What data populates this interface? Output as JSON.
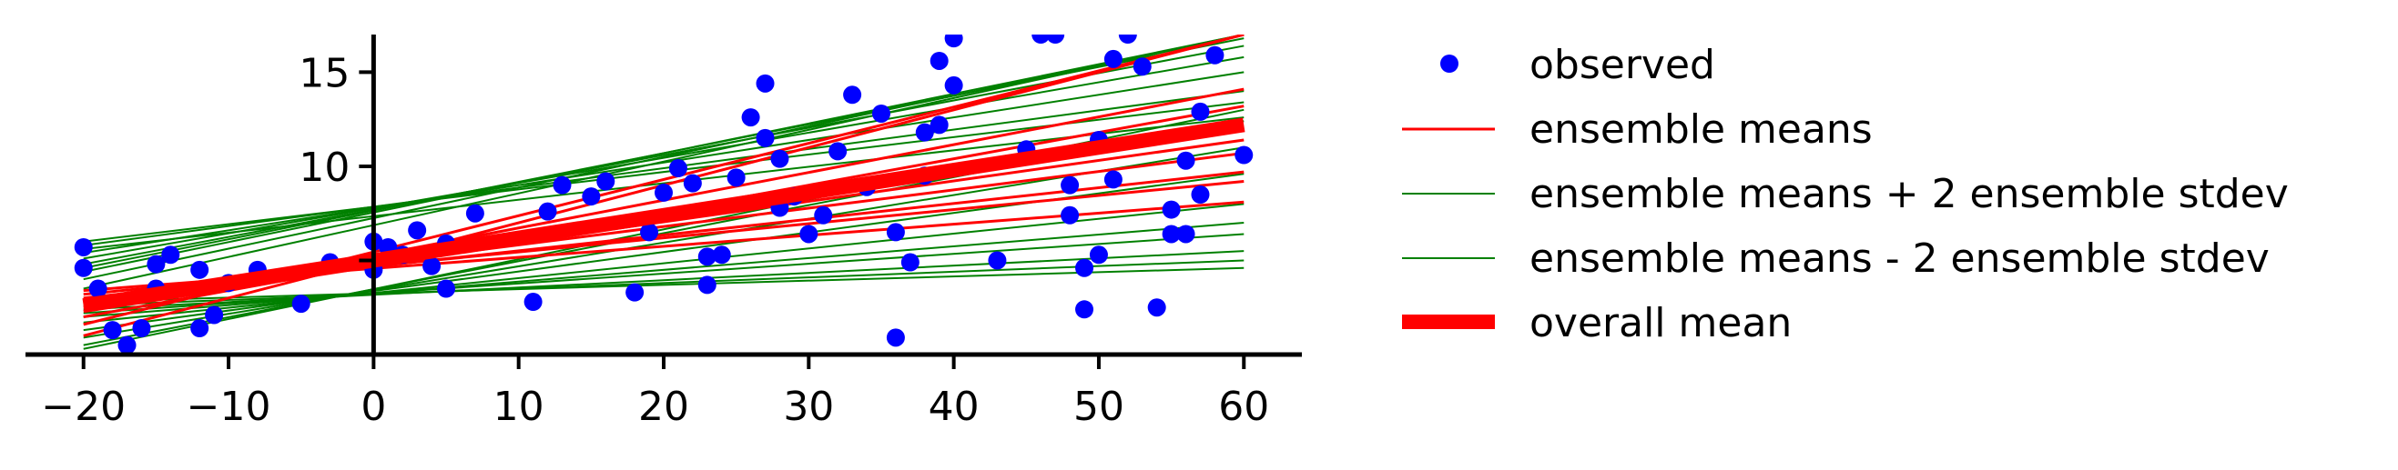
{
  "chart_data": {
    "type": "scatter",
    "title": "",
    "xlabel": "",
    "ylabel": "",
    "xlim": [
      -24,
      64
    ],
    "ylim": [
      0,
      17
    ],
    "x_ticks": [
      -20,
      -10,
      0,
      10,
      20,
      30,
      40,
      50,
      60
    ],
    "y_ticks": [
      5,
      10,
      15
    ],
    "y_tick_labels_shown": [
      10,
      15
    ],
    "grid": false,
    "legend_position": "right",
    "colors": {
      "observed": "#0000ff",
      "ensemble_means": "#ff0000",
      "ensemble_stdev": "#008000",
      "overall_mean": "#ff0000"
    },
    "legend": {
      "observed": "observed",
      "ensemble_means": "ensemble means",
      "plus_stdev": "ensemble means + 2 ensemble stdev",
      "minus_stdev": "ensemble means - 2 ensemble stdev",
      "overall_mean": "overall mean"
    },
    "observed": {
      "x": [
        -20,
        -20,
        -19,
        -18,
        -17,
        -16,
        -15,
        -15,
        -14,
        -12,
        -12,
        -11,
        -10,
        -8,
        -5,
        -3,
        0,
        0,
        1,
        2,
        3,
        4,
        5,
        5,
        7,
        11,
        12,
        13,
        15,
        16,
        18,
        19,
        20,
        21,
        22,
        23,
        23,
        24,
        25,
        26,
        27,
        27,
        28,
        28,
        29,
        30,
        31,
        32,
        33,
        34,
        35,
        36,
        36,
        37,
        38,
        38,
        39,
        39,
        40,
        40,
        43,
        45,
        46,
        47,
        48,
        48,
        49,
        49,
        50,
        50,
        51,
        51,
        52,
        53,
        54,
        55,
        55,
        56,
        56,
        57,
        57,
        58,
        60
      ],
      "y": [
        5.7,
        4.6,
        3.5,
        1.3,
        0.5,
        1.4,
        4.8,
        3.5,
        5.3,
        1.4,
        4.5,
        2.1,
        3.8,
        4.5,
        2.7,
        4.9,
        6.0,
        4.5,
        5.7,
        5.3,
        6.6,
        4.7,
        3.5,
        5.9,
        7.5,
        2.8,
        7.6,
        9.0,
        8.4,
        9.2,
        3.3,
        6.5,
        8.6,
        9.9,
        9.1,
        3.7,
        5.2,
        5.3,
        9.4,
        12.6,
        11.5,
        14.4,
        10.4,
        7.8,
        8.4,
        6.4,
        7.4,
        10.8,
        13.8,
        8.9,
        12.8,
        0.9,
        6.5,
        4.9,
        11.8,
        9.5,
        12.2,
        15.6,
        14.3,
        16.8,
        5.0,
        10.9,
        17.0,
        17.0,
        9.0,
        7.4,
        4.6,
        2.4,
        5.3,
        11.4,
        9.3,
        15.7,
        17.0,
        15.3,
        2.5,
        7.7,
        6.4,
        10.3,
        6.4,
        8.5,
        12.9,
        15.9,
        10.6
      ]
    },
    "ensemble_means": [
      {
        "y_at_xmin": 2.5,
        "y_at_xmax": 12.0
      },
      {
        "y_at_xmin": 2.3,
        "y_at_xmax": 14.1
      },
      {
        "y_at_xmin": 2.9,
        "y_at_xmax": 10.7
      },
      {
        "y_at_xmin": 1.6,
        "y_at_xmax": 17.0
      },
      {
        "y_at_xmin": 3.2,
        "y_at_xmax": 9.2
      },
      {
        "y_at_xmin": 1.0,
        "y_at_xmax": 17.0
      },
      {
        "y_at_xmin": 3.4,
        "y_at_xmax": 8.1
      },
      {
        "y_at_xmin": 2.0,
        "y_at_xmax": 13.2
      },
      {
        "y_at_xmin": 2.7,
        "y_at_xmax": 11.4
      },
      {
        "y_at_xmin": 3.0,
        "y_at_xmax": 9.7
      }
    ],
    "ensemble_plus_stdev": [
      {
        "y_at_xmin": 4.4,
        "y_at_xmax": 17.0
      },
      {
        "y_at_xmin": 4.0,
        "y_at_xmax": 17.0
      },
      {
        "y_at_xmin": 4.8,
        "y_at_xmax": 16.4
      },
      {
        "y_at_xmin": 5.1,
        "y_at_xmax": 15.8
      },
      {
        "y_at_xmin": 5.4,
        "y_at_xmax": 15.0
      },
      {
        "y_at_xmin": 5.8,
        "y_at_xmax": 14.0
      },
      {
        "y_at_xmin": 6.0,
        "y_at_xmax": 13.4
      },
      {
        "y_at_xmin": 3.5,
        "y_at_xmax": 17.0
      },
      {
        "y_at_xmin": 4.6,
        "y_at_xmax": 16.8
      },
      {
        "y_at_xmin": 5.6,
        "y_at_xmax": 12.6
      }
    ],
    "ensemble_minus_stdev": [
      {
        "y_at_xmin": 0.5,
        "y_at_xmax": 12.4
      },
      {
        "y_at_xmin": 0.9,
        "y_at_xmax": 11.0
      },
      {
        "y_at_xmin": 1.3,
        "y_at_xmax": 9.6
      },
      {
        "y_at_xmin": 1.7,
        "y_at_xmax": 8.0
      },
      {
        "y_at_xmin": 2.0,
        "y_at_xmax": 7.0
      },
      {
        "y_at_xmin": 2.2,
        "y_at_xmax": 6.4
      },
      {
        "y_at_xmin": 2.4,
        "y_at_xmax": 5.5
      },
      {
        "y_at_xmin": 2.6,
        "y_at_xmax": 5.0
      },
      {
        "y_at_xmin": 2.8,
        "y_at_xmax": 4.6
      },
      {
        "y_at_xmin": 0.3,
        "y_at_xmax": 13.0
      }
    ],
    "overall_mean": {
      "y_at_xmin": 2.6,
      "y_at_xmax": 12.2
    },
    "x_line_range": [
      -20,
      60
    ]
  }
}
